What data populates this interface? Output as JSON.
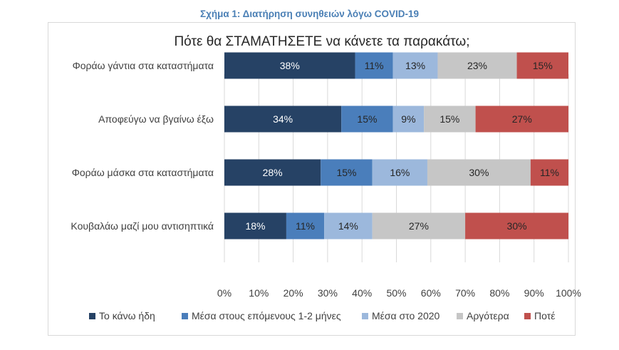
{
  "caption": "Σχήμα 1: Διατήρηση συνηθειών λόγω COVID-19",
  "chart_data": {
    "type": "bar",
    "orientation": "horizontal",
    "stacked": "100%",
    "title": "Πότε θα ΣΤΑΜΑΤΗΣΕΤΕ να κάνετε τα παρακάτω;",
    "categories": [
      "Φοράω γάντια στα καταστήματα",
      "Αποφεύγω να βγαίνω έξω",
      "Φοράω μάσκα στα καταστήματα",
      "Κουβαλάω μαζί μου αντισηπτικά"
    ],
    "series": [
      {
        "name": "Το κάνω ήδη",
        "color": "#264265",
        "label_color": "#ffffff",
        "values": [
          38,
          34,
          28,
          18
        ]
      },
      {
        "name": "Μέσα στους επόμενους 1-2 μήνες",
        "color": "#4a7ebb",
        "label_color": "#262626",
        "values": [
          11,
          15,
          15,
          11
        ]
      },
      {
        "name": "Μέσα στο 2020",
        "color": "#9cb8dc",
        "label_color": "#262626",
        "values": [
          13,
          9,
          16,
          14
        ]
      },
      {
        "name": "Αργότερα",
        "color": "#c6c6c6",
        "label_color": "#262626",
        "values": [
          23,
          15,
          30,
          27
        ]
      },
      {
        "name": "Ποτέ",
        "color": "#c0504d",
        "label_color": "#262626",
        "values": [
          15,
          27,
          11,
          30
        ]
      }
    ],
    "xlim": [
      0,
      100
    ],
    "xticks": [
      "0%",
      "10%",
      "20%",
      "30%",
      "40%",
      "50%",
      "60%",
      "70%",
      "80%",
      "90%",
      "100%"
    ],
    "value_suffix": "%",
    "grid": true,
    "legend": "bottom"
  }
}
